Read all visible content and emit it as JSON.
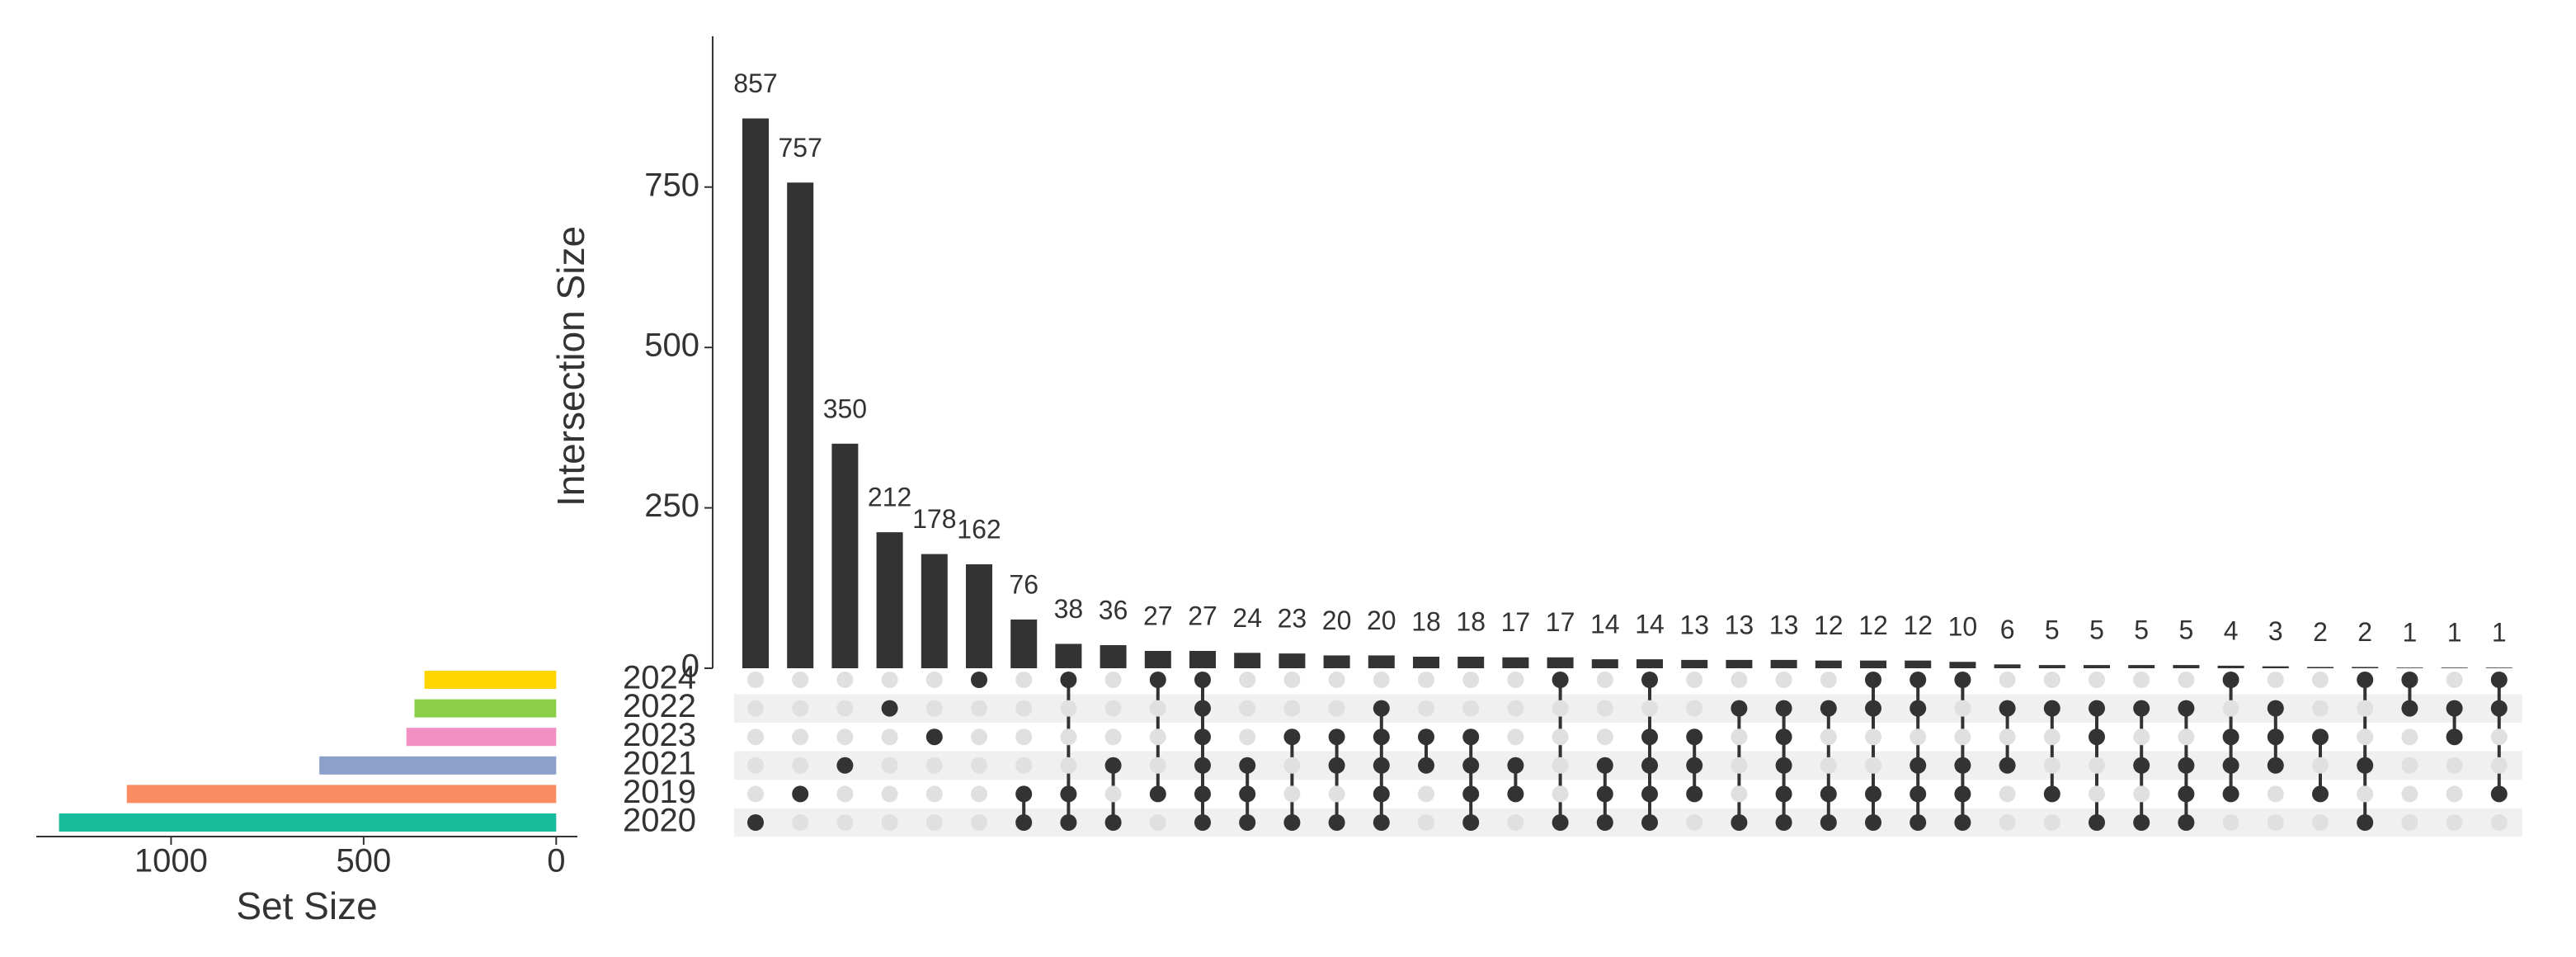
{
  "chart_data": {
    "type": "upset",
    "y_label": "Intersection Size",
    "x_label": "Set Size",
    "ylim": [
      0,
      985
    ],
    "yticks": [
      0,
      250,
      500,
      750
    ],
    "xlim": [
      1350,
      -55
    ],
    "xticks": [
      1000,
      500,
      0
    ],
    "bar_color": "#333333",
    "sets": [
      {
        "name": "2024",
        "size": 342,
        "color": "#FFD500"
      },
      {
        "name": "2022",
        "size": 368,
        "color": "#8BCF46"
      },
      {
        "name": "2023",
        "size": 389,
        "color": "#F290C4"
      },
      {
        "name": "2021",
        "size": 615,
        "color": "#8DA0CB"
      },
      {
        "name": "2019",
        "size": 1115,
        "color": "#FC8D62"
      },
      {
        "name": "2020",
        "size": 1291,
        "color": "#18BC9C"
      }
    ],
    "intersections": [
      {
        "value": 857,
        "members": [
          false,
          false,
          false,
          false,
          false,
          true
        ]
      },
      {
        "value": 757,
        "members": [
          false,
          false,
          false,
          false,
          true,
          false
        ]
      },
      {
        "value": 350,
        "members": [
          false,
          false,
          false,
          true,
          false,
          false
        ]
      },
      {
        "value": 212,
        "members": [
          false,
          true,
          false,
          false,
          false,
          false
        ]
      },
      {
        "value": 178,
        "members": [
          false,
          false,
          true,
          false,
          false,
          false
        ]
      },
      {
        "value": 162,
        "members": [
          true,
          false,
          false,
          false,
          false,
          false
        ]
      },
      {
        "value": 76,
        "members": [
          false,
          false,
          false,
          false,
          true,
          true
        ]
      },
      {
        "value": 38,
        "members": [
          true,
          false,
          false,
          false,
          true,
          true
        ]
      },
      {
        "value": 36,
        "members": [
          false,
          false,
          false,
          true,
          false,
          true
        ]
      },
      {
        "value": 27,
        "members": [
          true,
          false,
          false,
          false,
          true,
          false
        ]
      },
      {
        "value": 27,
        "members": [
          true,
          true,
          true,
          true,
          true,
          true
        ]
      },
      {
        "value": 24,
        "members": [
          false,
          false,
          false,
          true,
          true,
          true
        ]
      },
      {
        "value": 23,
        "members": [
          false,
          false,
          true,
          false,
          false,
          true
        ]
      },
      {
        "value": 20,
        "members": [
          false,
          false,
          true,
          true,
          false,
          true
        ]
      },
      {
        "value": 20,
        "members": [
          false,
          true,
          true,
          true,
          true,
          true
        ]
      },
      {
        "value": 18,
        "members": [
          false,
          false,
          true,
          true,
          false,
          false
        ]
      },
      {
        "value": 18,
        "members": [
          false,
          false,
          true,
          true,
          true,
          true
        ]
      },
      {
        "value": 17,
        "members": [
          false,
          false,
          false,
          true,
          true,
          false
        ]
      },
      {
        "value": 17,
        "members": [
          true,
          false,
          false,
          false,
          false,
          true
        ]
      },
      {
        "value": 14,
        "members": [
          false,
          false,
          false,
          true,
          true,
          true
        ]
      },
      {
        "value": 14,
        "members": [
          true,
          false,
          true,
          true,
          true,
          true
        ]
      },
      {
        "value": 13,
        "members": [
          false,
          false,
          true,
          true,
          true,
          false
        ]
      },
      {
        "value": 13,
        "members": [
          false,
          true,
          false,
          false,
          false,
          true
        ]
      },
      {
        "value": 13,
        "members": [
          false,
          true,
          true,
          true,
          true,
          true
        ]
      },
      {
        "value": 12,
        "members": [
          false,
          true,
          false,
          false,
          true,
          true
        ]
      },
      {
        "value": 12,
        "members": [
          true,
          true,
          false,
          false,
          true,
          true
        ]
      },
      {
        "value": 12,
        "members": [
          true,
          true,
          false,
          true,
          true,
          true
        ]
      },
      {
        "value": 10,
        "members": [
          true,
          false,
          false,
          true,
          true,
          true
        ]
      },
      {
        "value": 6,
        "members": [
          false,
          true,
          false,
          true,
          false,
          false
        ]
      },
      {
        "value": 5,
        "members": [
          false,
          true,
          false,
          false,
          true,
          false
        ]
      },
      {
        "value": 5,
        "members": [
          false,
          true,
          true,
          false,
          false,
          true
        ]
      },
      {
        "value": 5,
        "members": [
          false,
          true,
          false,
          true,
          false,
          true
        ]
      },
      {
        "value": 5,
        "members": [
          false,
          true,
          false,
          true,
          true,
          true
        ]
      },
      {
        "value": 4,
        "members": [
          true,
          false,
          true,
          true,
          true,
          false
        ]
      },
      {
        "value": 3,
        "members": [
          false,
          true,
          true,
          true,
          false,
          false
        ]
      },
      {
        "value": 2,
        "members": [
          false,
          false,
          true,
          false,
          true,
          false
        ]
      },
      {
        "value": 2,
        "members": [
          true,
          false,
          false,
          true,
          false,
          true
        ]
      },
      {
        "value": 1,
        "members": [
          true,
          true,
          false,
          false,
          false,
          false
        ]
      },
      {
        "value": 1,
        "members": [
          false,
          true,
          true,
          false,
          false,
          false
        ]
      },
      {
        "value": 1,
        "members": [
          true,
          true,
          false,
          false,
          true,
          false
        ]
      }
    ]
  }
}
